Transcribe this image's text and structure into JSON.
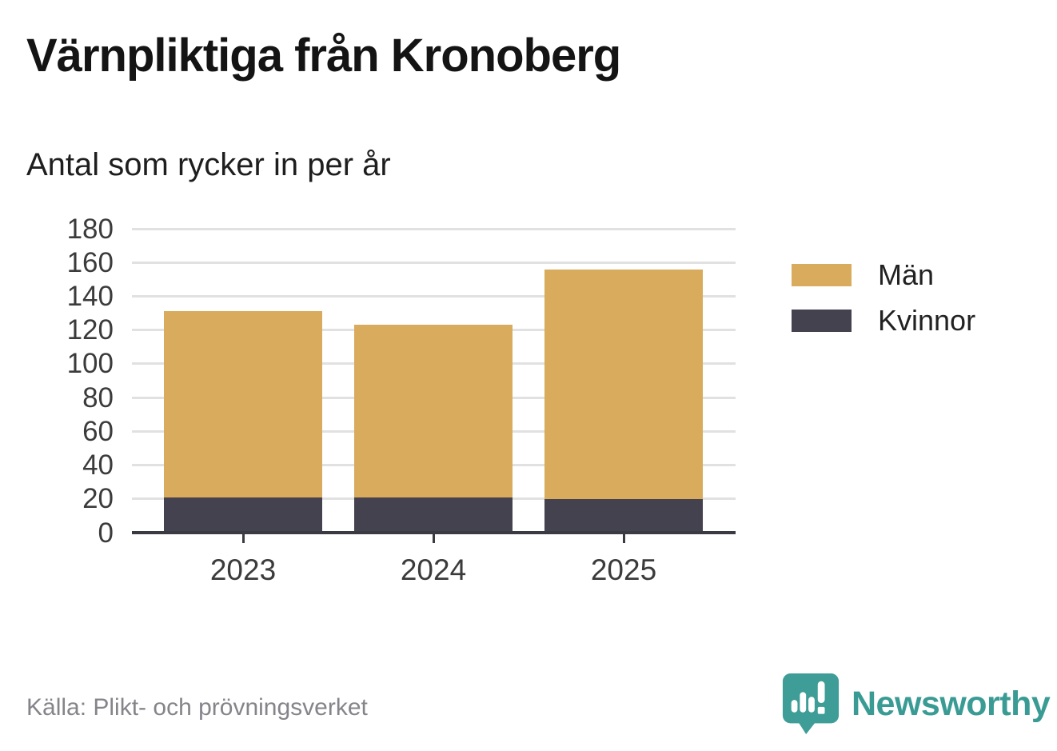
{
  "title": "Värnpliktiga från Kronoberg",
  "subtitle": "Antal som rycker in per år",
  "source": "Källa: Plikt- och prövningsverket",
  "brand": {
    "name": "Newsworthy",
    "color": "#3A9B95"
  },
  "colors": {
    "men": "#D9AB5C",
    "women": "#45424F",
    "grid": "#E1E1E1",
    "axis": "#3A3A42",
    "tick_text": "#3B3B3B",
    "source_text": "#84848A"
  },
  "legend": [
    {
      "label": "Män",
      "color": "#D9AB5C"
    },
    {
      "label": "Kvinnor",
      "color": "#45424F"
    }
  ],
  "chart_data": {
    "type": "bar",
    "stacked": true,
    "title": "Värnpliktiga från Kronoberg",
    "subtitle": "Antal som rycker in per år",
    "categories": [
      "2023",
      "2024",
      "2025"
    ],
    "series": [
      {
        "name": "Kvinnor",
        "color": "#45424F",
        "values": [
          21,
          21,
          20
        ]
      },
      {
        "name": "Män",
        "color": "#D9AB5C",
        "values": [
          110,
          102,
          136
        ]
      }
    ],
    "totals": [
      131,
      123,
      156
    ],
    "xlabel": "",
    "ylabel": "",
    "ylim": [
      0,
      180
    ],
    "yticks": [
      0,
      20,
      40,
      60,
      80,
      100,
      120,
      140,
      160,
      180
    ],
    "grid": true,
    "legend_position": "right-top"
  }
}
